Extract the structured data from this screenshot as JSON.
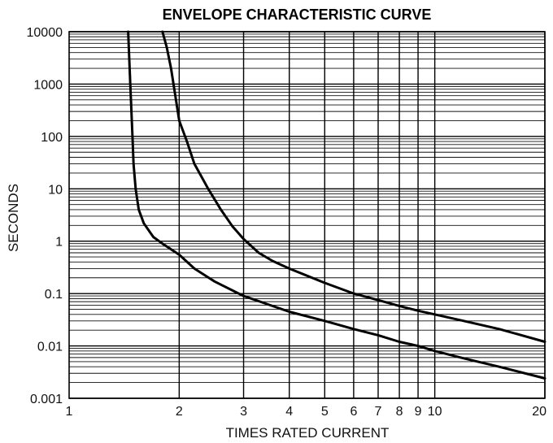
{
  "chart_data": {
    "type": "line",
    "title": "ENVELOPE CHARACTERISTIC CURVE",
    "xlabel": "TIMES RATED CURRENT",
    "ylabel": "SECONDS",
    "x_scale": "log",
    "y_scale": "log",
    "xlim": [
      1,
      20
    ],
    "ylim": [
      0.001,
      10000
    ],
    "x_ticks": [
      {
        "value": 1,
        "label": "1"
      },
      {
        "value": 2,
        "label": "2"
      },
      {
        "value": 3,
        "label": "3"
      },
      {
        "value": 4,
        "label": "4"
      },
      {
        "value": 5,
        "label": "5"
      },
      {
        "value": 6,
        "label": "6"
      },
      {
        "value": 7,
        "label": "7"
      },
      {
        "value": 8,
        "label": "8"
      },
      {
        "value": 9,
        "label": "9"
      },
      {
        "value": 10,
        "label": "10"
      },
      {
        "value": 20,
        "label": "20"
      }
    ],
    "y_ticks": [
      {
        "value": 0.001,
        "label": "0.001"
      },
      {
        "value": 0.01,
        "label": "0.01"
      },
      {
        "value": 0.1,
        "label": "0.1"
      },
      {
        "value": 1,
        "label": "1"
      },
      {
        "value": 10,
        "label": "10"
      },
      {
        "value": 100,
        "label": "100"
      },
      {
        "value": 1000,
        "label": "1000"
      },
      {
        "value": 10000,
        "label": "10000"
      }
    ],
    "grid": true,
    "series": [
      {
        "x": [
          1.45,
          1.47,
          1.49,
          1.5,
          1.52,
          1.55,
          1.6,
          1.7,
          1.8,
          2.0,
          2.2,
          2.5,
          3.0,
          3.5,
          4.0,
          5.0,
          6.0,
          7.0,
          8.0,
          9.0,
          10.0,
          12.0,
          15.0,
          20.0
        ],
        "y": [
          10000,
          1000,
          100,
          30,
          10,
          4,
          2.2,
          1.2,
          0.9,
          0.55,
          0.3,
          0.17,
          0.09,
          0.062,
          0.045,
          0.03,
          0.021,
          0.016,
          0.012,
          0.01,
          0.008,
          0.0058,
          0.004,
          0.0024
        ]
      },
      {
        "x": [
          1.8,
          1.85,
          1.9,
          2.0,
          2.1,
          2.2,
          2.4,
          2.6,
          2.8,
          3.0,
          3.3,
          3.6,
          4.0,
          5.0,
          6.0,
          7.0,
          8.0,
          9.0,
          10.0,
          12.0,
          15.0,
          20.0
        ],
        "y": [
          10000,
          5000,
          2000,
          200,
          80,
          30,
          10,
          4,
          1.9,
          1.1,
          0.6,
          0.42,
          0.3,
          0.16,
          0.1,
          0.075,
          0.058,
          0.047,
          0.04,
          0.03,
          0.021,
          0.012
        ]
      }
    ]
  }
}
